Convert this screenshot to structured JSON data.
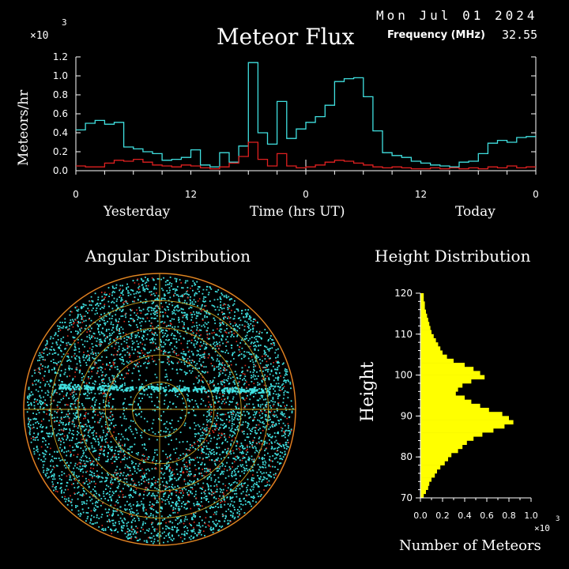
{
  "header": {
    "date": "Mon Jul 01 2024",
    "title": "Meteor Flux",
    "frequency_label": "Frequency (MHz)",
    "frequency_value": "32.55"
  },
  "chart_data": [
    {
      "type": "line",
      "title": "Meteor Flux",
      "ylabel": "Meteors/hr",
      "xlabel": "Time (hrs UT)",
      "y_multiplier_label": "×10",
      "y_multiplier_exponent": "3",
      "ylim": [
        0,
        1.2
      ],
      "y_ticks": [
        "0.0",
        "0.2",
        "0.4",
        "0.6",
        "0.8",
        "1.0",
        "1.2"
      ],
      "x_ticks": [
        "0",
        "12",
        "0",
        "12",
        "0"
      ],
      "x_day_labels": [
        "Yesterday",
        "Today"
      ],
      "x_unit": "hours since start of yesterday (UT)",
      "x": [
        0,
        1,
        2,
        3,
        4,
        5,
        6,
        7,
        8,
        9,
        10,
        11,
        12,
        13,
        14,
        15,
        16,
        17,
        18,
        19,
        20,
        21,
        22,
        23,
        24,
        25,
        26,
        27,
        28,
        29,
        30,
        31,
        32,
        33,
        34,
        35,
        36,
        37,
        38,
        39,
        40,
        41,
        42,
        43,
        44,
        45,
        46,
        47
      ],
      "series": [
        {
          "name": "",
          "color": "#40e0e0",
          "values": [
            0.43,
            0.5,
            0.53,
            0.49,
            0.51,
            0.25,
            0.23,
            0.2,
            0.18,
            0.11,
            0.12,
            0.14,
            0.22,
            0.06,
            0.04,
            0.19,
            0.09,
            0.26,
            1.14,
            0.4,
            0.28,
            0.73,
            0.34,
            0.44,
            0.51,
            0.57,
            0.69,
            0.94,
            0.97,
            0.98,
            0.78,
            0.42,
            0.19,
            0.16,
            0.14,
            0.1,
            0.08,
            0.06,
            0.05,
            0.04,
            0.09,
            0.1,
            0.18,
            0.29,
            0.32,
            0.3,
            0.35,
            0.36
          ]
        },
        {
          "name": "",
          "color": "#e02020",
          "values": [
            0.05,
            0.04,
            0.04,
            0.08,
            0.11,
            0.1,
            0.12,
            0.09,
            0.06,
            0.05,
            0.04,
            0.06,
            0.05,
            0.03,
            0.02,
            0.04,
            0.08,
            0.15,
            0.3,
            0.12,
            0.05,
            0.18,
            0.05,
            0.03,
            0.04,
            0.06,
            0.09,
            0.11,
            0.1,
            0.08,
            0.06,
            0.04,
            0.03,
            0.04,
            0.03,
            0.02,
            0.02,
            0.03,
            0.02,
            0.03,
            0.02,
            0.03,
            0.02,
            0.04,
            0.03,
            0.05,
            0.03,
            0.04
          ]
        }
      ]
    },
    {
      "type": "scatter",
      "title": "Angular Distribution",
      "point_color": "#40e0e0",
      "secondary_point_color": "#e03020",
      "ring_color": "#c8a020",
      "ring_count": 5,
      "outer_ring_color": "#ff4020"
    },
    {
      "type": "bar",
      "orientation": "horizontal",
      "title": "Height Distribution",
      "ylabel": "Height",
      "xlabel": "Number of Meteors",
      "x_multiplier_label": "×10",
      "x_multiplier_exponent": "3",
      "xlim": [
        0,
        1.0
      ],
      "ylim": [
        70,
        120
      ],
      "x_ticks": [
        "0.0",
        "0.2",
        "0.4",
        "0.6",
        "0.8",
        "1.0"
      ],
      "y_ticks": [
        "70",
        "80",
        "90",
        "100",
        "110",
        "120"
      ],
      "bar_color": "#ffff00",
      "heights": [
        70,
        71,
        72,
        73,
        74,
        75,
        76,
        77,
        78,
        79,
        80,
        81,
        82,
        83,
        84,
        85,
        86,
        87,
        88,
        89,
        90,
        91,
        92,
        93,
        94,
        95,
        96,
        97,
        98,
        99,
        100,
        101,
        102,
        103,
        104,
        105,
        106,
        107,
        108,
        109,
        110,
        111,
        112,
        113,
        114,
        115,
        116,
        117,
        118,
        119
      ],
      "values": [
        0.03,
        0.05,
        0.07,
        0.08,
        0.1,
        0.13,
        0.15,
        0.18,
        0.22,
        0.25,
        0.28,
        0.34,
        0.38,
        0.42,
        0.48,
        0.56,
        0.66,
        0.76,
        0.84,
        0.8,
        0.74,
        0.62,
        0.54,
        0.46,
        0.4,
        0.32,
        0.34,
        0.38,
        0.46,
        0.58,
        0.54,
        0.48,
        0.4,
        0.3,
        0.24,
        0.2,
        0.18,
        0.16,
        0.14,
        0.12,
        0.1,
        0.09,
        0.08,
        0.07,
        0.06,
        0.05,
        0.04,
        0.04,
        0.03,
        0.03
      ]
    }
  ]
}
